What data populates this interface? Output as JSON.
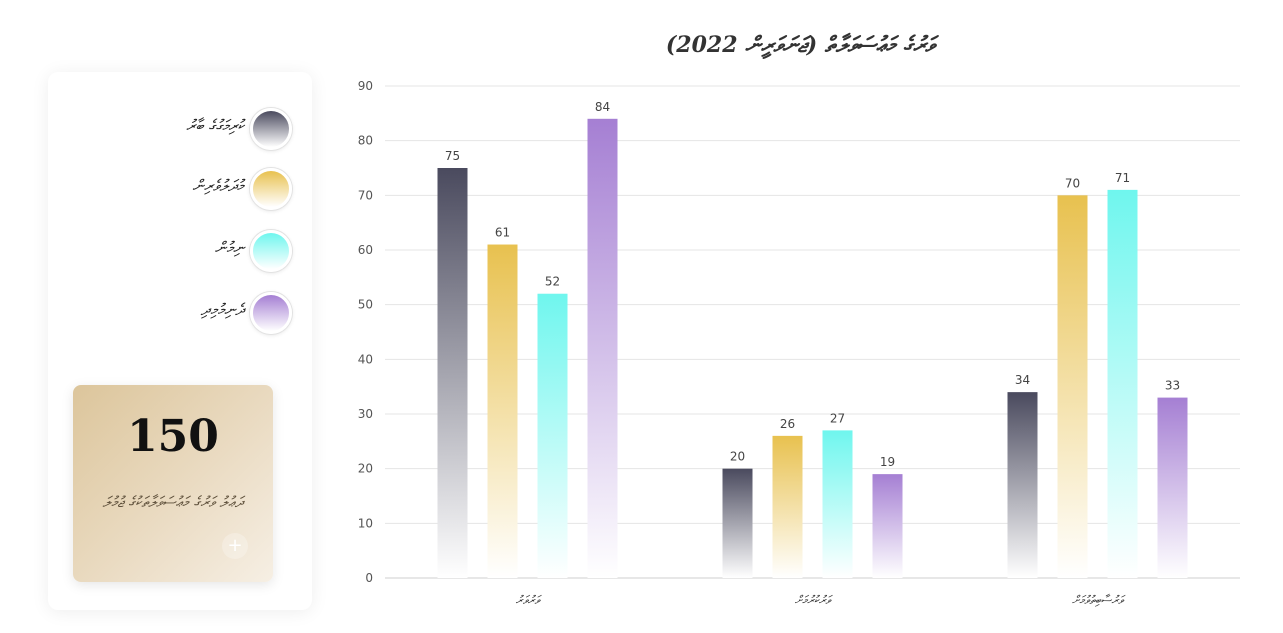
{
  "colors": {
    "series1": "#4a4a5e",
    "series2": "#e8c14f",
    "series3": "#6ff6ee",
    "series4": "#a57fd3",
    "grid": "#e4e4e4",
    "card_bg": "#e2cda8"
  },
  "legend": {
    "items": [
      {
        "label": "ކުރިމަގުގެ ބާރު"
      },
      {
        "label": "މުދަލުވެރިން"
      },
      {
        "label": "ނިމުން"
      },
      {
        "label": "ދެނިމުމިދި"
      }
    ]
  },
  "summary": {
    "total": "150",
    "label": "ދަޢުލު ވަރުގެ މަޢުސަވަލާތަކުގެ ޖުމުލަ",
    "plus_icon": "plus-icon"
  },
  "chart_data": {
    "type": "bar",
    "title": "ވަރުގެ މަޢުސަވަލާތް (ޖަނަވަރީން 2022)",
    "categories": [
      "ވަރުވަރު",
      "ވަރުކުރުމަށް",
      "ވަރުސާބިތުވުމަށް"
    ],
    "series": [
      {
        "values": [
          75,
          20,
          34
        ]
      },
      {
        "values": [
          61,
          26,
          70
        ]
      },
      {
        "values": [
          52,
          27,
          71
        ]
      },
      {
        "values": [
          84,
          19,
          33
        ]
      }
    ],
    "ylim": [
      0,
      90
    ],
    "yticks": [
      0,
      10,
      20,
      30,
      40,
      50,
      60,
      70,
      80,
      90
    ],
    "grid": true,
    "legend_position": "left"
  }
}
